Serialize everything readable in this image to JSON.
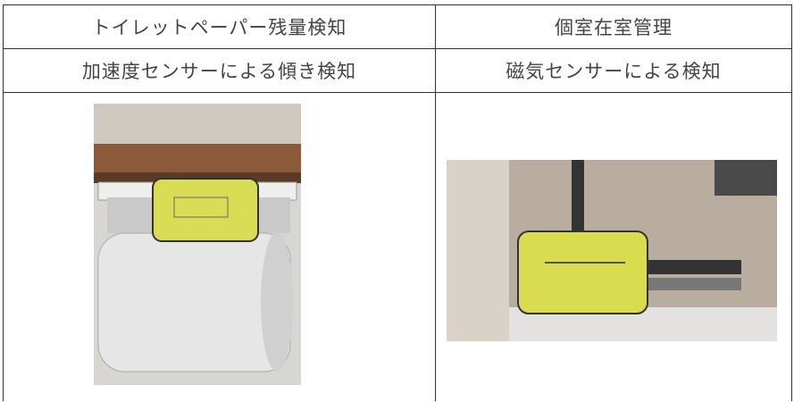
{
  "table": {
    "rows": [
      [
        "トイレットペーパー残量検知",
        "個室在室管理"
      ],
      [
        "加速度センサーによる傾き検知",
        "磁気センサーによる検知"
      ]
    ]
  }
}
